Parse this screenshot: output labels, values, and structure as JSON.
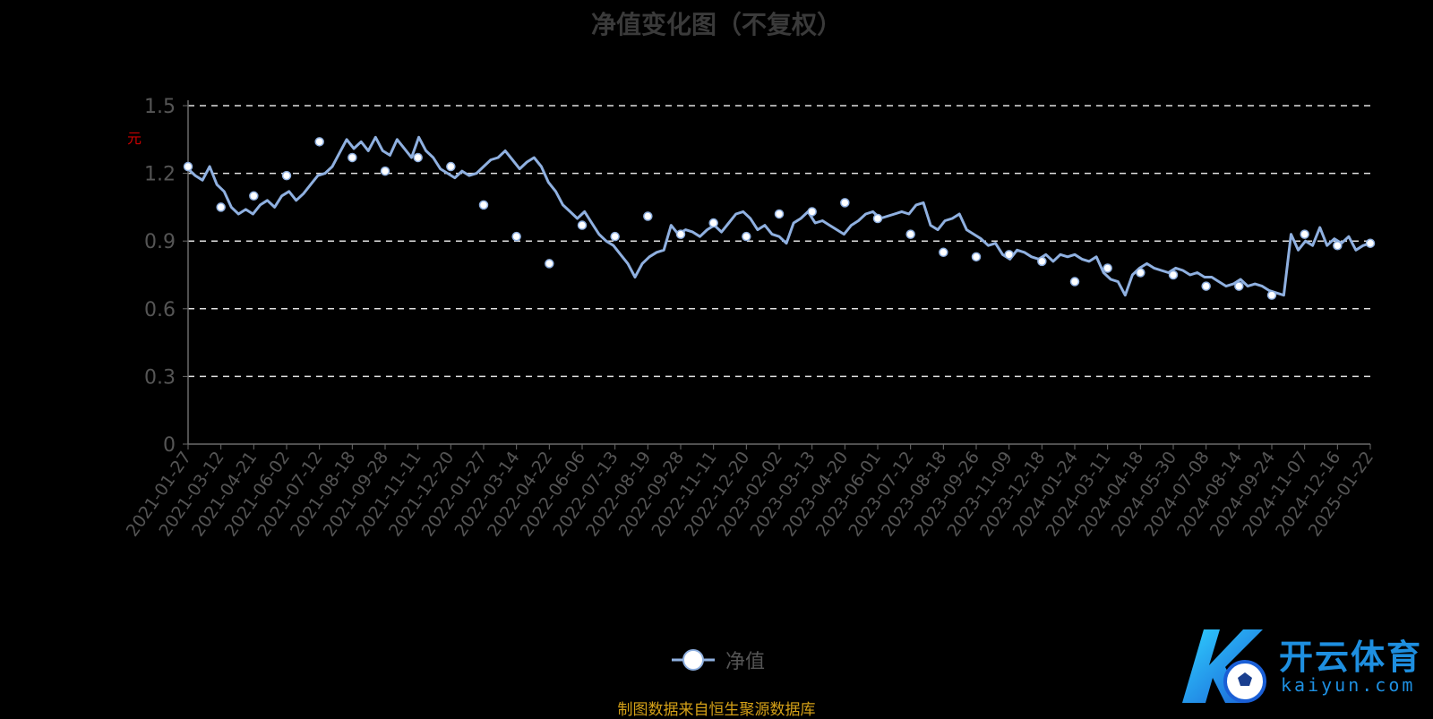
{
  "chart_data": {
    "type": "line",
    "title": "净值变化图（不复权）",
    "ylabel": "元",
    "ylim": [
      0,
      1.5
    ],
    "yticks": [
      0,
      0.3,
      0.6,
      0.9,
      1.2,
      1.5
    ],
    "grid": true,
    "legend_position": "bottom-center",
    "categories": [
      "2021-01-27",
      "2021-03-12",
      "2021-04-21",
      "2021-06-02",
      "2021-07-12",
      "2021-08-18",
      "2021-09-28",
      "2021-11-11",
      "2021-12-20",
      "2022-01-27",
      "2022-03-14",
      "2022-04-22",
      "2022-06-06",
      "2022-07-13",
      "2022-08-19",
      "2022-09-28",
      "2022-11-11",
      "2022-12-20",
      "2023-02-02",
      "2023-03-13",
      "2023-04-20",
      "2023-06-01",
      "2023-07-12",
      "2023-08-18",
      "2023-09-26",
      "2023-11-09",
      "2023-12-18",
      "2024-01-24",
      "2024-03-11",
      "2024-04-18",
      "2024-05-30",
      "2024-07-08",
      "2024-08-14",
      "2024-09-24",
      "2024-11-07",
      "2024-12-16",
      "2025-01-22"
    ],
    "series": [
      {
        "name": "净值",
        "values": [
          1.23,
          1.05,
          1.1,
          1.19,
          1.34,
          1.27,
          1.21,
          1.27,
          1.23,
          1.06,
          0.92,
          0.8,
          0.97,
          0.92,
          1.01,
          0.93,
          0.98,
          0.92,
          1.02,
          1.03,
          1.07,
          1.0,
          0.93,
          0.85,
          0.83,
          0.84,
          0.81,
          0.72,
          0.78,
          0.76,
          0.75,
          0.7,
          0.7,
          0.66,
          0.93,
          0.88,
          0.89
        ],
        "line_values": [
          1.22,
          1.19,
          1.17,
          1.23,
          1.15,
          1.12,
          1.05,
          1.02,
          1.04,
          1.02,
          1.06,
          1.08,
          1.05,
          1.1,
          1.12,
          1.08,
          1.11,
          1.15,
          1.19,
          1.2,
          1.23,
          1.29,
          1.35,
          1.31,
          1.34,
          1.3,
          1.36,
          1.3,
          1.28,
          1.35,
          1.31,
          1.27,
          1.36,
          1.3,
          1.27,
          1.22,
          1.2,
          1.18,
          1.21,
          1.19,
          1.2,
          1.23,
          1.26,
          1.27,
          1.3,
          1.26,
          1.22,
          1.25,
          1.27,
          1.23,
          1.16,
          1.12,
          1.06,
          1.03,
          1.0,
          1.03,
          0.98,
          0.93,
          0.9,
          0.88,
          0.84,
          0.8,
          0.74,
          0.8,
          0.83,
          0.85,
          0.86,
          0.97,
          0.93,
          0.95,
          0.94,
          0.92,
          0.95,
          0.97,
          0.94,
          0.98,
          1.02,
          1.03,
          1.0,
          0.95,
          0.97,
          0.93,
          0.92,
          0.89,
          0.98,
          1.0,
          1.03,
          0.98,
          0.99,
          0.97,
          0.95,
          0.93,
          0.97,
          0.99,
          1.02,
          1.03,
          1.0,
          1.01,
          1.02,
          1.03,
          1.02,
          1.06,
          1.07,
          0.97,
          0.95,
          0.99,
          1.0,
          1.02,
          0.95,
          0.93,
          0.91,
          0.88,
          0.89,
          0.84,
          0.82,
          0.86,
          0.85,
          0.83,
          0.82,
          0.84,
          0.81,
          0.84,
          0.83,
          0.84,
          0.82,
          0.81,
          0.83,
          0.76,
          0.73,
          0.72,
          0.66,
          0.75,
          0.78,
          0.8,
          0.78,
          0.77,
          0.76,
          0.78,
          0.77,
          0.75,
          0.76,
          0.74,
          0.74,
          0.72,
          0.7,
          0.71,
          0.73,
          0.7,
          0.71,
          0.7,
          0.68,
          0.67,
          0.66,
          0.93,
          0.86,
          0.9,
          0.88,
          0.96,
          0.88,
          0.91,
          0.89,
          0.92,
          0.86,
          0.88,
          0.89
        ]
      }
    ]
  },
  "legend": {
    "label": "净值"
  },
  "source_note": "制图数据来自恒生聚源数据库",
  "watermark": {
    "cn": "开云体育",
    "en": "kaiyun.com"
  },
  "colors": {
    "line": "#8fb0e0",
    "grid": "#e0e0e0",
    "axis": "#6b6b6b",
    "tick_text": "#555555",
    "ylabel": "#cc0000",
    "source": "#d4a017"
  }
}
